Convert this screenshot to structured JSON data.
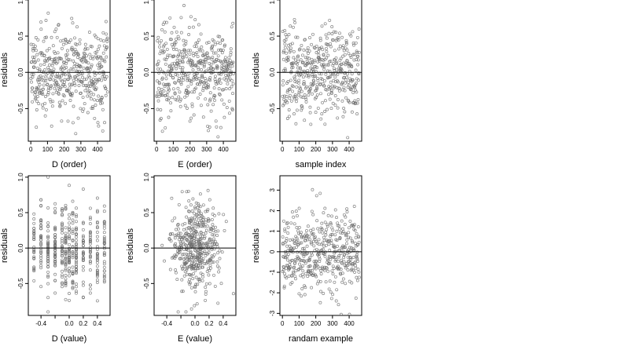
{
  "chart_data": [
    {
      "type": "scatter",
      "xlabel": "D (order)",
      "ylabel": "residuals",
      "xlim": [
        -15,
        475
      ],
      "ylim": [
        -0.95,
        1.02
      ],
      "xticks": [
        0,
        100,
        200,
        300,
        400
      ],
      "xtick_labels": [
        "0",
        "100",
        "200",
        "300",
        "400"
      ],
      "yticks": [
        -0.5,
        0.0,
        0.5,
        1.0
      ],
      "ytick_labels": [
        "-0.5",
        "0.0",
        "0.5",
        "1.0"
      ],
      "reference_line_y": 0,
      "x_kind": "order",
      "n_points": 460,
      "y_spread": 0.3,
      "seed": 11
    },
    {
      "type": "scatter",
      "xlabel": "E (order)",
      "ylabel": "residuals",
      "xlim": [
        -15,
        475
      ],
      "ylim": [
        -0.95,
        1.02
      ],
      "xticks": [
        0,
        100,
        200,
        300,
        400
      ],
      "xtick_labels": [
        "0",
        "100",
        "200",
        "300",
        "400"
      ],
      "yticks": [
        -0.5,
        0.0,
        0.5,
        1.0
      ],
      "ytick_labels": [
        "-0.5",
        "0.0",
        "0.5",
        "1.0"
      ],
      "reference_line_y": 0,
      "x_kind": "order",
      "n_points": 460,
      "y_spread": 0.3,
      "seed": 23
    },
    {
      "type": "scatter",
      "xlabel": "sample index",
      "ylabel": "residuals",
      "xlim": [
        -15,
        475
      ],
      "ylim": [
        -0.95,
        1.02
      ],
      "xticks": [
        0,
        100,
        200,
        300,
        400
      ],
      "xtick_labels": [
        "0",
        "100",
        "200",
        "300",
        "400"
      ],
      "yticks": [
        -0.5,
        0.0,
        0.5,
        1.0
      ],
      "ytick_labels": [
        "-0.5",
        "0.0",
        "0.5",
        "1.0"
      ],
      "reference_line_y": 0,
      "x_kind": "order",
      "n_points": 460,
      "y_spread": 0.3,
      "seed": 37
    },
    {
      "type": "scatter",
      "xlabel": "D (value)",
      "ylabel": "residuals",
      "xlim": [
        -0.58,
        0.58
      ],
      "ylim": [
        -0.95,
        1.02
      ],
      "xticks": [
        -0.4,
        -0.2,
        0.0,
        0.2,
        0.4
      ],
      "xtick_labels": [
        "-0.4",
        "",
        "0.0",
        "0.2",
        "0.4"
      ],
      "yticks": [
        -0.5,
        0.0,
        0.5,
        1.0
      ],
      "ytick_labels": [
        "-0.5",
        "0.0",
        "0.5",
        "1.0"
      ],
      "reference_line_y": 0,
      "x_kind": "discrete",
      "x_levels": [
        -0.5,
        -0.4,
        -0.3,
        -0.2,
        -0.1,
        -0.05,
        0.0,
        0.05,
        0.1,
        0.2,
        0.3,
        0.4,
        0.5
      ],
      "n_points": 460,
      "y_spread": 0.3,
      "seed": 51
    },
    {
      "type": "scatter",
      "xlabel": "E (value)",
      "ylabel": "residuals",
      "xlim": [
        -0.58,
        0.58
      ],
      "ylim": [
        -0.95,
        1.02
      ],
      "xticks": [
        -0.4,
        -0.2,
        0.0,
        0.2,
        0.4
      ],
      "xtick_labels": [
        "-0.4",
        "",
        "0.0",
        "0.2",
        "0.4"
      ],
      "yticks": [
        -0.5,
        0.0,
        0.5,
        1.0
      ],
      "ytick_labels": [
        "-0.5",
        "0.0",
        "0.5",
        "1.0"
      ],
      "reference_line_y": 0,
      "x_kind": "normal",
      "x_spread": 0.16,
      "n_points": 460,
      "y_spread": 0.3,
      "seed": 67
    },
    {
      "type": "scatter",
      "xlabel": "randam example",
      "ylabel": "residuals",
      "xlim": [
        -15,
        475
      ],
      "ylim": [
        -3.1,
        3.7
      ],
      "xticks": [
        0,
        100,
        200,
        300,
        400
      ],
      "xtick_labels": [
        "0",
        "100",
        "200",
        "300",
        "400"
      ],
      "yticks": [
        -3,
        -2,
        -1,
        0,
        1,
        2,
        3
      ],
      "ytick_labels": [
        "-3",
        "-2",
        "-1",
        "0",
        "1",
        "2",
        "3"
      ],
      "reference_line_y": 0,
      "x_kind": "order",
      "n_points": 460,
      "y_spread": 1.0,
      "seed": 89
    }
  ]
}
